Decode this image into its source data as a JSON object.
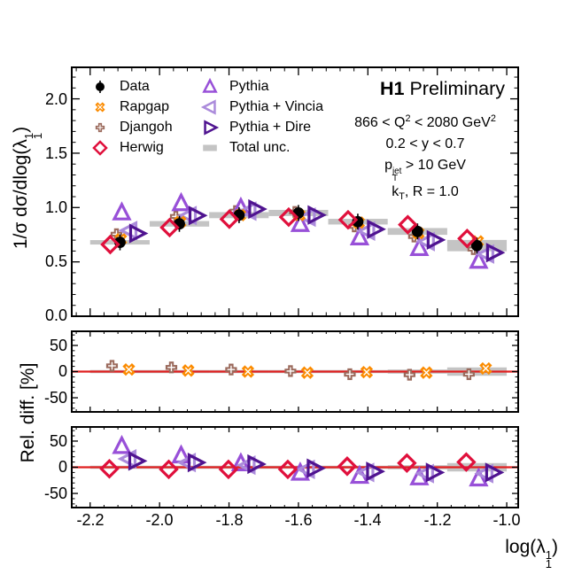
{
  "header": {
    "brand": "H1",
    "status": "Preliminary"
  },
  "cuts": {
    "q2_pre": "866 < Q",
    "q2_sup": "2",
    "q2_mid": " < 2080 GeV",
    "q2_sup2": "2",
    "y_range": "0.2 < y < 0.7",
    "pt_pre": "p",
    "pt_sup": "jet",
    "pt_sub": "T",
    "pt_post": " > 10 GeV",
    "kt_pre": "k",
    "kt_sub": "T",
    "kt_post": ", R = 1.0"
  },
  "labels": {
    "ylabel_main_pre": "1/σ dσ/dlog(λ",
    "ylabel_main_sup": "1",
    "ylabel_main_sub": "1",
    "ylabel_main_post": ")",
    "ylabel_ratio": "Rel. diff. [%]",
    "xlabel_pre": "log(λ",
    "xlabel_sup": "1",
    "xlabel_sub": "1",
    "xlabel_post": ")",
    "x_ticks": [
      "-2.2",
      "-2.0",
      "-1.8",
      "-1.6",
      "-1.4",
      "-1.2",
      "-1.0"
    ],
    "y_main_ticks": [
      "2.0",
      "1.5",
      "1.0",
      "0.5",
      "0.0"
    ],
    "y_ratio_ticks": [
      "50",
      "0",
      "-50"
    ]
  },
  "legend": {
    "items": [
      {
        "key": "data",
        "marker": "filled-circle-with-error-bar",
        "label": "Data"
      },
      {
        "key": "rapgap",
        "marker": "x-cross",
        "label": "Rapgap"
      },
      {
        "key": "djangoh",
        "marker": "plus-cross",
        "label": "Djangoh"
      },
      {
        "key": "herwig",
        "marker": "open-diamond",
        "label": "Herwig"
      },
      {
        "key": "pythia",
        "marker": "open-triangle-up",
        "label": "Pythia"
      },
      {
        "key": "vincia",
        "marker": "open-triangle-left",
        "label": "Pythia + Vincia"
      },
      {
        "key": "dire",
        "marker": "open-triangle-right",
        "label": "Pythia + Dire"
      },
      {
        "key": "unc",
        "marker": "filled-box",
        "label": "Total unc."
      }
    ]
  },
  "colors": {
    "data": "#000000",
    "rapgap": "#fb8b00",
    "djangoh": "#9b6a5c",
    "herwig": "#e0103c",
    "pythia": "#9850d8",
    "vincia": "#ab8bdb",
    "dire": "#4f1390",
    "unc": "#c4c4c4",
    "zero_line": "#e02020",
    "frame": "#000000"
  },
  "chart_data": {
    "type": "scatter",
    "title": "H1 Preliminary: 1/σ dσ/dlog(λ_1^1) vs log(λ_1^1), kT jets R = 1.0",
    "xlabel": "log(λ_1^1)",
    "x_range": [
      -2.253,
      -0.967
    ],
    "x_tick_values": [
      -2.2,
      -2.0,
      -1.8,
      -1.6,
      -1.4,
      -1.2,
      -1.0
    ],
    "x_minor_step": 0.04,
    "bin_edges": [
      -2.2,
      -2.0286,
      -1.8571,
      -1.6857,
      -1.5143,
      -1.3429,
      -1.1714,
      -1.0
    ],
    "bin_centers": [
      -2.114,
      -1.943,
      -1.771,
      -1.6,
      -1.429,
      -1.257,
      -1.086
    ],
    "main_panel": {
      "ylabel": "1/σ dσ/dlog(λ_1^1)",
      "y_range": [
        0,
        2.29
      ],
      "y_tick_values": [
        0,
        0.5,
        1.0,
        1.5,
        2.0
      ],
      "y_minor_step": 0.1,
      "data_values": [
        0.68,
        0.85,
        0.93,
        0.95,
        0.87,
        0.78,
        0.65
      ]
    },
    "rel_diff_pct": {
      "rapgap": [
        4,
        2,
        0,
        -2,
        -1,
        -2,
        6
      ],
      "djangoh": [
        11,
        8,
        4,
        1,
        -5,
        -6,
        -5
      ],
      "herwig": [
        -3,
        -4,
        -4,
        -4,
        2,
        8,
        10
      ],
      "pythia": [
        40,
        22,
        7,
        -11,
        -17,
        -20,
        -22
      ],
      "vincia": [
        16,
        9,
        4,
        -4,
        -10,
        -12,
        -12
      ],
      "dire": [
        12,
        9,
        6,
        -2,
        -8,
        -10,
        -10
      ]
    },
    "total_unc_pct": [
      3,
      3,
      3,
      3,
      3,
      4,
      8
    ],
    "ratio_panels": {
      "y_range": [
        -77,
        77
      ],
      "y_tick_values": [
        -50,
        0,
        50
      ],
      "y_minor_step": 10,
      "panel2_series": [
        "djangoh",
        "rapgap"
      ],
      "panel3_series": [
        "pythia",
        "vincia",
        "dire",
        "herwig"
      ]
    },
    "legend_position": "top-left-and-top-middle",
    "grid": false
  }
}
